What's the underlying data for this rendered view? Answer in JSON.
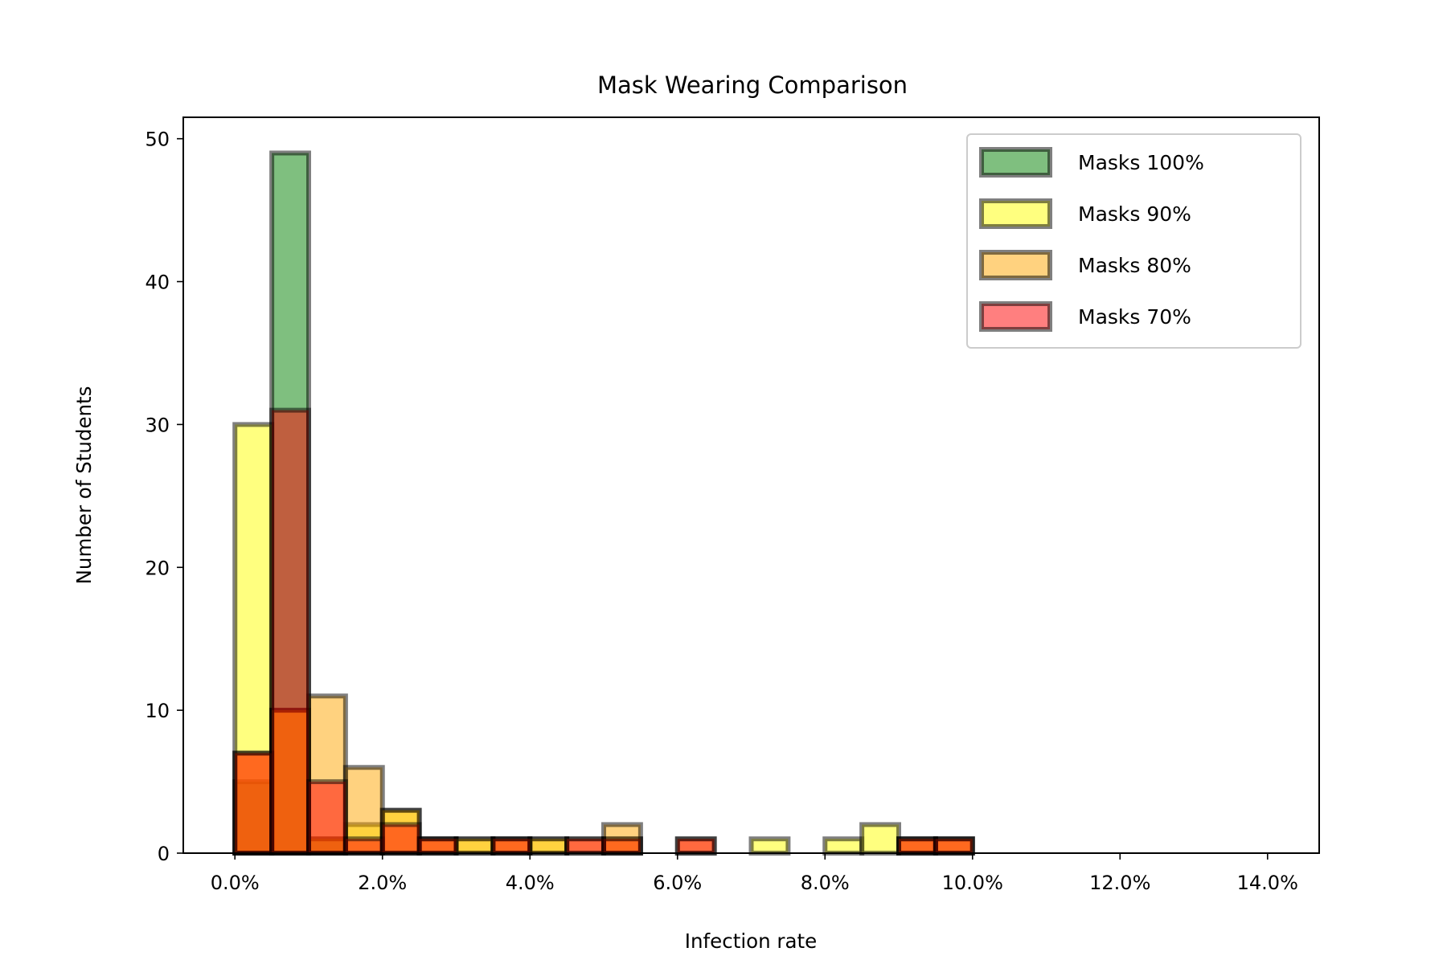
{
  "chart_data": {
    "type": "histogram",
    "title": "Mask Wearing Comparison",
    "xlabel": "Infection rate",
    "ylabel": "Number of Students",
    "xlim": [
      -0.7,
      14.7
    ],
    "ylim": [
      0,
      51.5
    ],
    "x_ticks": [
      0,
      2,
      4,
      6,
      8,
      10,
      12,
      14
    ],
    "x_tick_labels": [
      "0.0%",
      "2.0%",
      "4.0%",
      "6.0%",
      "8.0%",
      "10.0%",
      "12.0%",
      "14.0%"
    ],
    "y_ticks": [
      0,
      10,
      20,
      30,
      40,
      50
    ],
    "y_tick_labels": [
      "0",
      "10",
      "20",
      "30",
      "40",
      "50"
    ],
    "bin_edges": [
      0,
      0.5,
      1.0,
      1.5,
      2.0,
      2.5,
      3.0,
      3.5,
      4.0,
      4.5,
      5.0,
      5.5,
      6.0,
      6.5,
      7.0,
      7.5,
      8.0,
      8.5,
      9.0,
      9.5,
      10.0,
      10.5,
      11.0,
      11.5,
      12.0,
      12.5,
      13.0,
      13.5,
      14.0
    ],
    "legend_position": "top-right",
    "grid": false,
    "series": [
      {
        "name": "Masks 100%",
        "color": "#008000",
        "counts": [
          5,
          49,
          1,
          0,
          0,
          0,
          0,
          0,
          0,
          0,
          0,
          0,
          0,
          0,
          0,
          0,
          0,
          0,
          0,
          0,
          0,
          0,
          0,
          0,
          0,
          0,
          0,
          0
        ]
      },
      {
        "name": "Masks 90%",
        "color": "#ffff00",
        "counts": [
          30,
          10,
          1,
          2,
          3,
          1,
          1,
          1,
          1,
          0,
          1,
          0,
          0,
          0,
          1,
          0,
          1,
          2,
          1,
          1,
          0,
          0,
          0,
          0,
          0,
          0,
          0,
          0
        ]
      },
      {
        "name": "Masks 80%",
        "color": "#ffa500",
        "counts": [
          7,
          10,
          11,
          6,
          3,
          1,
          1,
          1,
          1,
          1,
          2,
          0,
          1,
          0,
          0,
          0,
          0,
          0,
          1,
          1,
          0,
          0,
          0,
          0,
          0,
          0,
          0,
          0
        ]
      },
      {
        "name": "Masks 70%",
        "color": "#ff0000",
        "counts": [
          7,
          31,
          5,
          1,
          2,
          1,
          0,
          1,
          0,
          1,
          1,
          0,
          1,
          0,
          0,
          0,
          0,
          0,
          1,
          1,
          0,
          0,
          0,
          0,
          0,
          0,
          0,
          0
        ]
      }
    ]
  }
}
